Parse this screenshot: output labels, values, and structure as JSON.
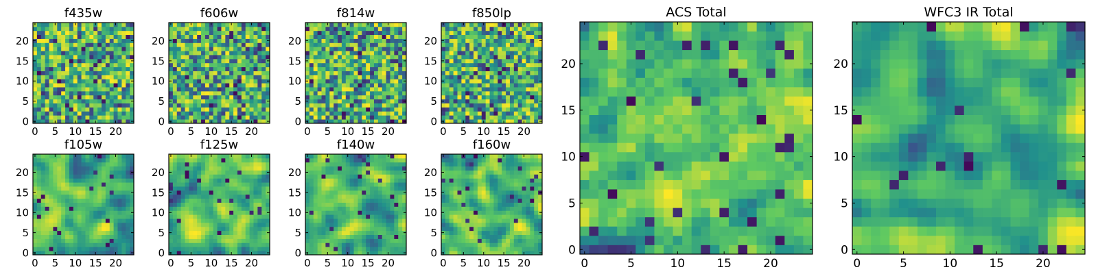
{
  "figure": {
    "colormap": [
      "#440154",
      "#3b528b",
      "#21918c",
      "#5ec962",
      "#fde725"
    ]
  },
  "chart_data": [
    {
      "type": "heatmap",
      "title": "f435w",
      "grid_size": 25,
      "seed": 11,
      "smooth": 0,
      "xticks": [
        0,
        5,
        10,
        15,
        20
      ],
      "yticks": [
        0,
        5,
        10,
        15,
        20
      ],
      "xlim": [
        0,
        25
      ],
      "ylim": [
        0,
        25
      ]
    },
    {
      "type": "heatmap",
      "title": "f606w",
      "grid_size": 25,
      "seed": 23,
      "smooth": 0,
      "xticks": [
        0,
        5,
        10,
        15,
        20
      ],
      "yticks": [
        0,
        5,
        10,
        15,
        20
      ],
      "xlim": [
        0,
        25
      ],
      "ylim": [
        0,
        25
      ]
    },
    {
      "type": "heatmap",
      "title": "f814w",
      "grid_size": 25,
      "seed": 37,
      "smooth": 0,
      "xticks": [
        0,
        5,
        10,
        15,
        20
      ],
      "yticks": [
        0,
        5,
        10,
        15,
        20
      ],
      "xlim": [
        0,
        25
      ],
      "ylim": [
        0,
        25
      ]
    },
    {
      "type": "heatmap",
      "title": "f850lp",
      "grid_size": 25,
      "seed": 41,
      "smooth": 0,
      "xticks": [
        0,
        5,
        10,
        15,
        20
      ],
      "yticks": [
        0,
        5,
        10,
        15,
        20
      ],
      "xlim": [
        0,
        25
      ],
      "ylim": [
        0,
        25
      ]
    },
    {
      "type": "heatmap",
      "title": "f105w",
      "grid_size": 25,
      "seed": 53,
      "smooth": 2,
      "xticks": [
        0,
        5,
        10,
        15,
        20
      ],
      "yticks": [
        0,
        5,
        10,
        15,
        20
      ],
      "xlim": [
        0,
        25
      ],
      "ylim": [
        0,
        25
      ]
    },
    {
      "type": "heatmap",
      "title": "f125w",
      "grid_size": 25,
      "seed": 67,
      "smooth": 2,
      "xticks": [
        0,
        5,
        10,
        15,
        20
      ],
      "yticks": [
        0,
        5,
        10,
        15,
        20
      ],
      "xlim": [
        0,
        25
      ],
      "ylim": [
        0,
        25
      ]
    },
    {
      "type": "heatmap",
      "title": "f140w",
      "grid_size": 25,
      "seed": 71,
      "smooth": 2,
      "xticks": [
        0,
        5,
        10,
        15,
        20
      ],
      "yticks": [
        0,
        5,
        10,
        15,
        20
      ],
      "xlim": [
        0,
        25
      ],
      "ylim": [
        0,
        25
      ]
    },
    {
      "type": "heatmap",
      "title": "f160w",
      "grid_size": 25,
      "seed": 89,
      "smooth": 2,
      "xticks": [
        0,
        5,
        10,
        15,
        20
      ],
      "yticks": [
        0,
        5,
        10,
        15,
        20
      ],
      "xlim": [
        0,
        25
      ],
      "ylim": [
        0,
        25
      ]
    },
    {
      "type": "heatmap",
      "title": "ACS Total",
      "grid_size": 25,
      "seed": 97,
      "smooth": 1,
      "xticks": [
        0,
        5,
        10,
        15,
        20
      ],
      "yticks": [
        0,
        5,
        10,
        15,
        20
      ],
      "xlim": [
        0,
        25
      ],
      "ylim": [
        0,
        25
      ]
    },
    {
      "type": "heatmap",
      "title": "WFC3 IR Total",
      "grid_size": 25,
      "seed": 103,
      "smooth": 2,
      "xticks": [
        0,
        5,
        10,
        15,
        20
      ],
      "yticks": [
        0,
        5,
        10,
        15,
        20
      ],
      "xlim": [
        0,
        25
      ],
      "ylim": [
        0,
        25
      ]
    }
  ]
}
